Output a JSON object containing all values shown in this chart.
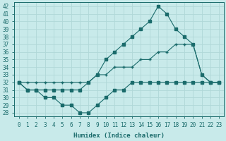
{
  "xlabel": "Humidex (Indice chaleur)",
  "x": [
    0,
    1,
    2,
    3,
    4,
    5,
    6,
    7,
    8,
    9,
    10,
    11,
    12,
    13,
    14,
    15,
    16,
    17,
    18,
    19,
    20,
    21,
    22,
    23
  ],
  "line_max": [
    32,
    31,
    31,
    31,
    31,
    31,
    31,
    31,
    32,
    33,
    35,
    36,
    37,
    38,
    39,
    40,
    42,
    41,
    39,
    38,
    37,
    33,
    32,
    32
  ],
  "line_mean": [
    32,
    32,
    32,
    32,
    32,
    32,
    32,
    32,
    32,
    33,
    33,
    34,
    34,
    34,
    35,
    35,
    36,
    36,
    37,
    37,
    37,
    33,
    32,
    32
  ],
  "line_min": [
    32,
    31,
    31,
    30,
    30,
    29,
    29,
    28,
    28,
    29,
    30,
    31,
    31,
    32,
    32,
    32,
    32,
    32,
    32,
    32,
    32,
    32,
    32,
    32
  ],
  "ylim": [
    27.5,
    42.5
  ],
  "yticks": [
    28,
    29,
    30,
    31,
    32,
    33,
    34,
    35,
    36,
    37,
    38,
    39,
    40,
    41,
    42
  ],
  "bg_color": "#c8eaea",
  "line_color": "#1a6b6b",
  "grid_color": "#b0d8d8",
  "tick_fontsize": 5.5,
  "axis_fontsize": 6.5
}
